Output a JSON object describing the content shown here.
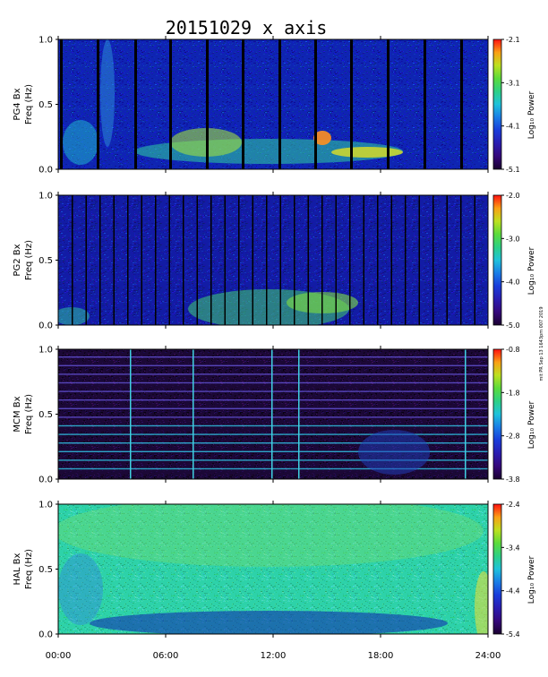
{
  "title": "20151029 x axis",
  "side_note": "mit PR Sep 13 1643pm 007 2019",
  "x_ticks": [
    "00:00",
    "06:00",
    "12:00",
    "18:00",
    "24:00"
  ],
  "chart_data": [
    {
      "type": "heatmap",
      "ylabel_line1": "PG4 Bx",
      "ylabel_line2": "Freq (Hz)",
      "x": {
        "range": [
          0,
          24
        ],
        "unit": "hours"
      },
      "ylim": [
        0.0,
        1.0
      ],
      "y_ticks": [
        "1.0",
        "0.5",
        "0.0"
      ],
      "colorbar": {
        "label": "Log₁₀ Power",
        "ticks": [
          "-2.1",
          "-3.1",
          "-4.1",
          "-5.1"
        ],
        "range": [
          -5.1,
          -2.1
        ]
      }
    },
    {
      "type": "heatmap",
      "ylabel_line1": "PG2 Bx",
      "ylabel_line2": "Freq (Hz)",
      "x": {
        "range": [
          0,
          24
        ],
        "unit": "hours"
      },
      "ylim": [
        0.0,
        1.0
      ],
      "y_ticks": [
        "1.0",
        "0.5",
        "0.0"
      ],
      "colorbar": {
        "label": "Log₁₀ Power",
        "ticks": [
          "-2.0",
          "-3.0",
          "-4.0",
          "-5.0"
        ],
        "range": [
          -5.0,
          -2.0
        ]
      }
    },
    {
      "type": "heatmap",
      "ylabel_line1": "MCM Bx",
      "ylabel_line2": "Freq (Hz)",
      "x": {
        "range": [
          0,
          24
        ],
        "unit": "hours"
      },
      "ylim": [
        0.0,
        1.0
      ],
      "y_ticks": [
        "1.0",
        "0.5",
        "0.0"
      ],
      "colorbar": {
        "label": "Log₁₀ Power",
        "ticks": [
          "-0.8",
          "-1.8",
          "-2.8",
          "-3.8"
        ],
        "range": [
          -3.8,
          -0.8
        ]
      }
    },
    {
      "type": "heatmap",
      "ylabel_line1": "HAL Bx",
      "ylabel_line2": "Freq (Hz)",
      "x": {
        "range": [
          0,
          24
        ],
        "unit": "hours"
      },
      "ylim": [
        0.0,
        1.0
      ],
      "y_ticks": [
        "1.0",
        "0.5",
        "0.0"
      ],
      "colorbar": {
        "label": "Log₁₀ Power",
        "ticks": [
          "-2.4",
          "-3.4",
          "-4.4",
          "-5.4"
        ],
        "range": [
          -5.4,
          -2.4
        ]
      }
    }
  ]
}
